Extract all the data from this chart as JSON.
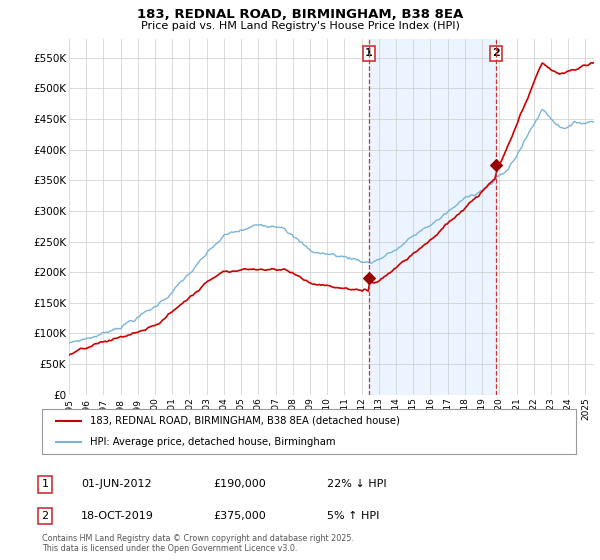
{
  "title1": "183, REDNAL ROAD, BIRMINGHAM, B38 8EA",
  "title2": "Price paid vs. HM Land Registry's House Price Index (HPI)",
  "ylabel_ticks": [
    "£0",
    "£50K",
    "£100K",
    "£150K",
    "£200K",
    "£250K",
    "£300K",
    "£350K",
    "£400K",
    "£450K",
    "£500K",
    "£550K"
  ],
  "ytick_values": [
    0,
    50000,
    100000,
    150000,
    200000,
    250000,
    300000,
    350000,
    400000,
    450000,
    500000,
    550000
  ],
  "ylim": [
    0,
    580000
  ],
  "year_start": 1995,
  "year_end": 2025,
  "transaction1_date": 2012.42,
  "transaction1_price": 190000,
  "transaction2_date": 2019.79,
  "transaction2_price": 375000,
  "hpi_color": "#7ab4d8",
  "price_color": "#cc0000",
  "vline_color": "#cc3333",
  "dot_color": "#990000",
  "legend1_label": "183, REDNAL ROAD, BIRMINGHAM, B38 8EA (detached house)",
  "legend2_label": "HPI: Average price, detached house, Birmingham",
  "table_row1": [
    "1",
    "01-JUN-2012",
    "£190,000",
    "22% ↓ HPI"
  ],
  "table_row2": [
    "2",
    "18-OCT-2019",
    "£375,000",
    "5% ↑ HPI"
  ],
  "footer": "Contains HM Land Registry data © Crown copyright and database right 2025.\nThis data is licensed under the Open Government Licence v3.0.",
  "bg_shade_color": "#ddeeff",
  "bg_shade_alpha": 0.55
}
